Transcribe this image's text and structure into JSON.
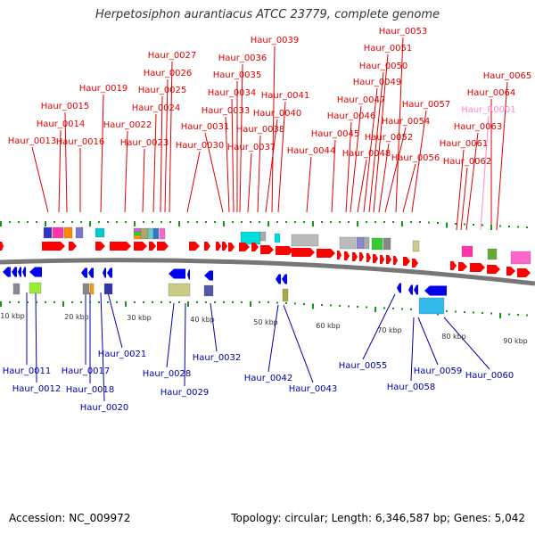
{
  "title": "Herpetosiphon aurantiacus ATCC 23779, complete genome",
  "footer": {
    "accession": "Accession: NC_009972",
    "summary": "Topology: circular; Length: 6,346,587 bp; Genes: 5,042"
  },
  "colors": {
    "forward_label": "#dd0000",
    "reverse_label": "#0000aa",
    "rna_label": "#ff88cc",
    "forward_gene": "#ff0000",
    "reverse_gene": "#0000ee",
    "backbone": "#777777",
    "tick": "#119911"
  },
  "scale_labels": [
    "10 kbp",
    "20 kbp",
    "30 kbp",
    "40 kbp",
    "50 kbp",
    "60 kbp",
    "70 kbp",
    "80 kbp",
    "90 kbp"
  ],
  "forward_genes": [
    "Haur_0013",
    "Haur_0014",
    "Haur_0015",
    "Haur_0016",
    "Haur_0019",
    "Haur_0022",
    "Haur_0023",
    "Haur_0024",
    "Haur_0025",
    "Haur_0026",
    "Haur_0027",
    "Haur_0030",
    "Haur_0031",
    "Haur_0033",
    "Haur_0034",
    "Haur_0035",
    "Haur_0036",
    "Haur_0037",
    "Haur_0038",
    "Haur_0039",
    "Haur_0040",
    "Haur_0041",
    "Haur_0044",
    "Haur_0045",
    "Haur_0046",
    "Haur_0047",
    "Haur_0048",
    "Haur_0049",
    "Haur_0050",
    "Haur_0051",
    "Haur_0052",
    "Haur_0053",
    "Haur_0054",
    "Haur_0056",
    "Haur_0057",
    "Haur_0061",
    "Haur_0062",
    "Haur_0063",
    "Haur_R0001",
    "Haur_0064",
    "Haur_0065"
  ],
  "reverse_genes": [
    "Haur_0011",
    "Haur_0012",
    "Haur_0017",
    "Haur_0018",
    "Haur_0020",
    "Haur_0021",
    "Haur_0028",
    "Haur_0029",
    "Haur_0032",
    "Haur_0042",
    "Haur_0043",
    "Haur_0055",
    "Haur_0058",
    "Haur_0059",
    "Haur_0060"
  ]
}
